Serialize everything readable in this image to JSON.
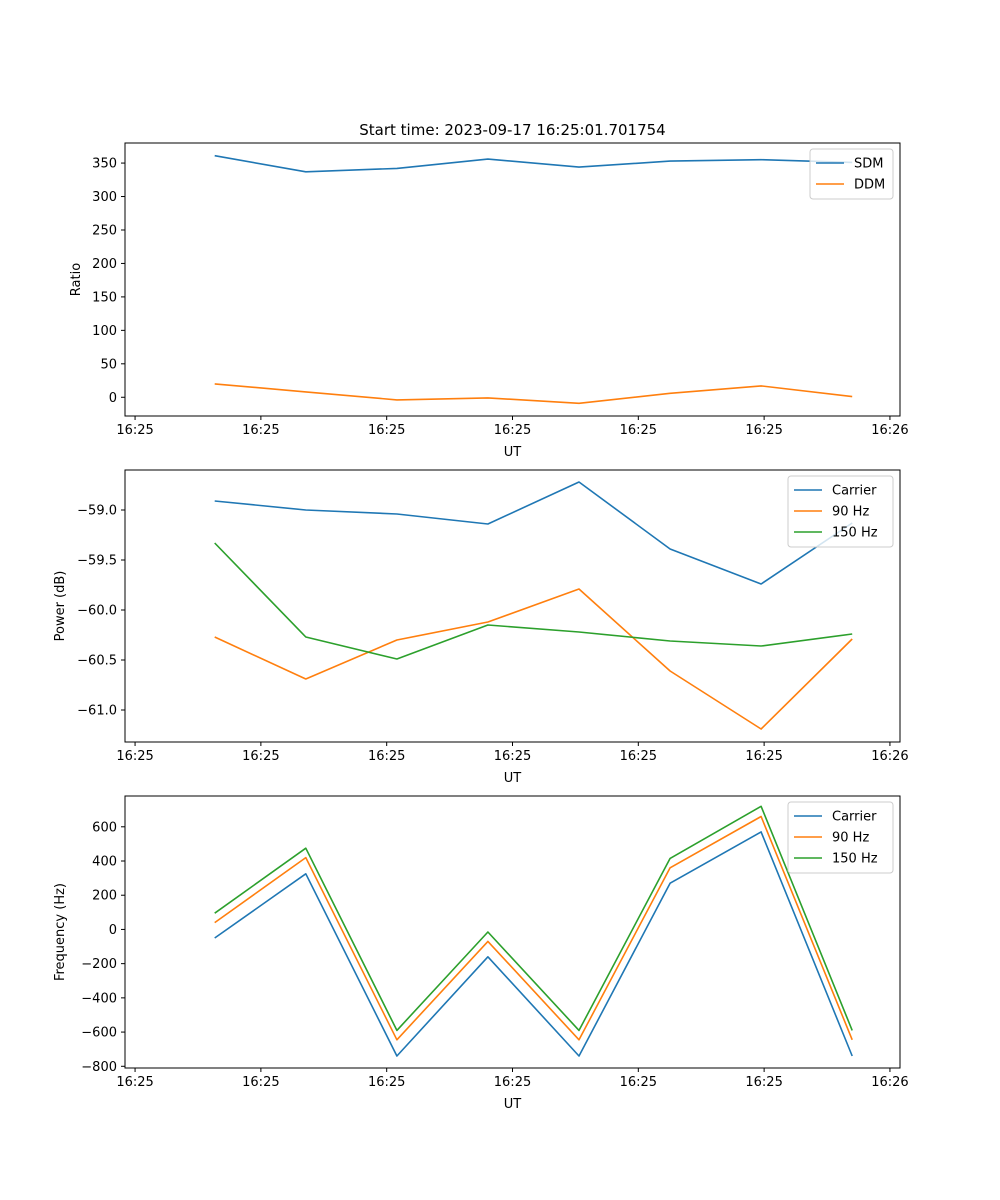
{
  "chart_data": [
    {
      "type": "line",
      "title": "Start time: 2023-09-17 16:25:01.701754",
      "xlabel": "UT",
      "ylabel": "Ratio",
      "x": [
        1,
        2,
        3,
        4,
        5,
        6,
        7,
        8
      ],
      "xlim": [
        0.8,
        9.2
      ],
      "xticks": [
        1,
        2,
        3,
        4,
        5,
        6,
        7
      ],
      "xticks_pos": [
        0.0,
        1.5,
        3.0,
        4.5,
        6.0,
        7.5,
        9.0
      ],
      "xtick_labels": [
        "16:25",
        "16:25",
        "16:25",
        "16:25",
        "16:25",
        "16:25",
        "16:26"
      ],
      "ylim": [
        -28,
        380
      ],
      "yticks": [
        0,
        50,
        100,
        150,
        200,
        250,
        300,
        350
      ],
      "ytick_labels": [
        "0",
        "50",
        "100",
        "150",
        "200",
        "250",
        "300",
        "350"
      ],
      "legend_position": "top-right",
      "series": [
        {
          "name": "SDM",
          "color": "#1f77b4",
          "values": [
            361,
            337,
            342,
            356,
            344,
            353,
            355,
            351
          ]
        },
        {
          "name": "DDM",
          "color": "#ff7f0e",
          "values": [
            20,
            8,
            -4,
            -1,
            -9,
            6,
            17,
            1
          ]
        }
      ]
    },
    {
      "type": "line",
      "title": "",
      "xlabel": "UT",
      "ylabel": "Power (dB)",
      "xlim": [
        0.8,
        9.2
      ],
      "xticks_pos": [
        0.0,
        1.5,
        3.0,
        4.5,
        6.0,
        7.5,
        9.0
      ],
      "xtick_labels": [
        "16:25",
        "16:25",
        "16:25",
        "16:25",
        "16:25",
        "16:25",
        "16:26"
      ],
      "ylim": [
        -61.32,
        -58.6
      ],
      "yticks": [
        -61.0,
        -60.5,
        -60.0,
        -59.5,
        -59.0
      ],
      "ytick_labels": [
        "−61.0",
        "−60.5",
        "−60.0",
        "−59.5",
        "−59.0"
      ],
      "legend_position": "top-right",
      "series": [
        {
          "name": "Carrier",
          "color": "#1f77b4",
          "values": [
            -58.91,
            -59.0,
            -59.04,
            -59.14,
            -58.72,
            -59.39,
            -59.74,
            -59.13
          ]
        },
        {
          "name": "90 Hz",
          "color": "#ff7f0e",
          "values": [
            -60.27,
            -60.69,
            -60.3,
            -60.12,
            -59.79,
            -60.61,
            -61.19,
            -60.29
          ]
        },
        {
          "name": "150 Hz",
          "color": "#2ca02c",
          "values": [
            -59.33,
            -60.27,
            -60.49,
            -60.15,
            -60.22,
            -60.31,
            -60.36,
            -60.24
          ]
        }
      ]
    },
    {
      "type": "line",
      "title": "",
      "xlabel": "UT",
      "ylabel": "Frequency (Hz)",
      "xlim": [
        0.8,
        9.2
      ],
      "xticks_pos": [
        0.0,
        1.5,
        3.0,
        4.5,
        6.0,
        7.5,
        9.0
      ],
      "xtick_labels": [
        "16:25",
        "16:25",
        "16:25",
        "16:25",
        "16:25",
        "16:25",
        "16:26"
      ],
      "ylim": [
        -810,
        780
      ],
      "yticks": [
        -800,
        -600,
        -400,
        -200,
        0,
        200,
        400,
        600
      ],
      "ytick_labels": [
        "−800",
        "−600",
        "−400",
        "−200",
        "0",
        "200",
        "400",
        "600"
      ],
      "legend_position": "top-right",
      "series": [
        {
          "name": "Carrier",
          "color": "#1f77b4",
          "values": [
            -50,
            325,
            -740,
            -160,
            -740,
            270,
            570,
            -740
          ]
        },
        {
          "name": "90 Hz",
          "color": "#ff7f0e",
          "values": [
            40,
            420,
            -645,
            -70,
            -645,
            360,
            660,
            -645
          ]
        },
        {
          "name": "150 Hz",
          "color": "#2ca02c",
          "values": [
            95,
            475,
            -590,
            -15,
            -590,
            415,
            720,
            -590
          ]
        }
      ]
    }
  ]
}
